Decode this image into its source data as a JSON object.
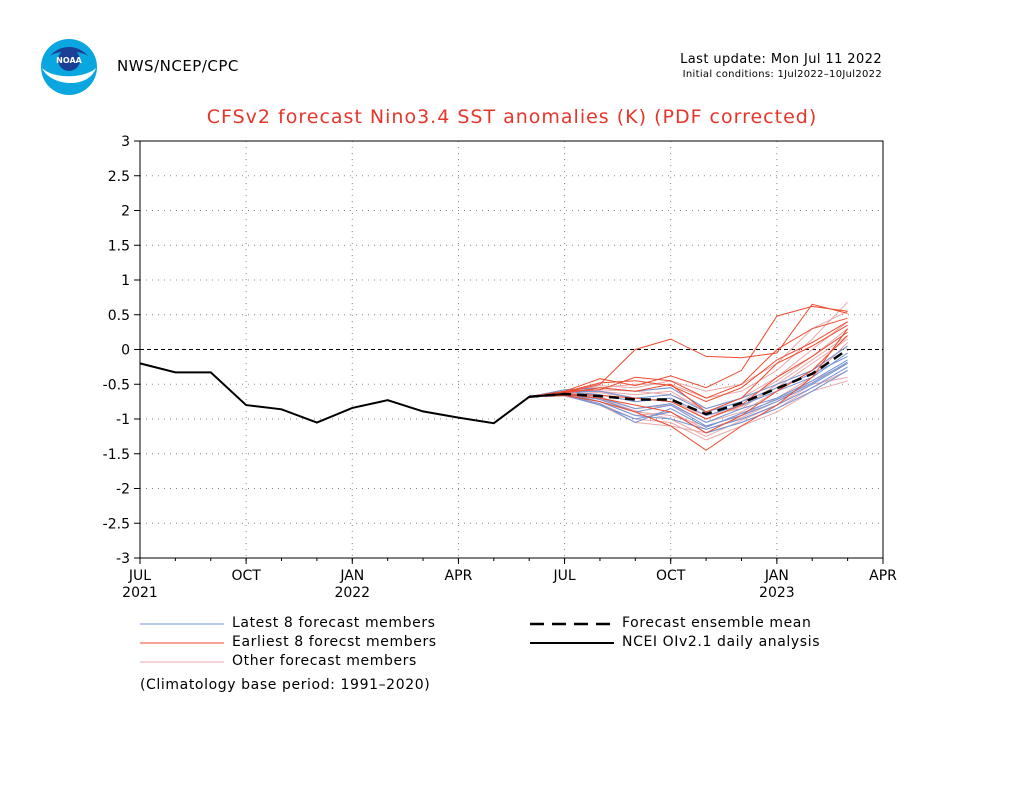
{
  "header": {
    "agency": "NWS/NCEP/CPC",
    "last_update": "Last update: Mon Jul 11 2022",
    "initial_conditions": "Initial conditions: 1Jul2022–10Jul2022"
  },
  "colors": {
    "latest": "#6f93d6",
    "earliest": "#ef4a2e",
    "other": "#e8a9a9",
    "mean": "#000000",
    "observed": "#000000",
    "title": "#e8352a"
  },
  "legend": {
    "latest": "Latest 8 forecast members",
    "earliest": "Earliest 8 forecst members",
    "other": "Other forecast members",
    "mean": "Forecast ensemble mean",
    "observed": "NCEI OIv2.1 daily analysis"
  },
  "note": "(Climatology base period: 1991–2020)",
  "chart_data": {
    "type": "line",
    "title": "CFSv2 forecast Nino3.4 SST anomalies (K) (PDF corrected)",
    "xlabel": "",
    "ylabel": "",
    "ylim": [
      -3,
      3
    ],
    "yticks": [
      3,
      2.5,
      2,
      1.5,
      1,
      0.5,
      0,
      -0.5,
      -1,
      -1.5,
      -2,
      -2.5,
      -3
    ],
    "x_range_months": [
      "2021-07",
      "2023-04"
    ],
    "x_ticks": [
      {
        "month": "2021-07",
        "label": "JUL",
        "year": "2021"
      },
      {
        "month": "2021-10",
        "label": "OCT",
        "year": ""
      },
      {
        "month": "2022-01",
        "label": "JAN",
        "year": "2022"
      },
      {
        "month": "2022-04",
        "label": "APR",
        "year": ""
      },
      {
        "month": "2022-07",
        "label": "JUL",
        "year": ""
      },
      {
        "month": "2022-10",
        "label": "OCT",
        "year": ""
      },
      {
        "month": "2023-01",
        "label": "JAN",
        "year": "2023"
      },
      {
        "month": "2023-04",
        "label": "APR",
        "year": ""
      }
    ],
    "grid": true,
    "observed": {
      "x": [
        "2021-07",
        "2021-08",
        "2021-09",
        "2021-10",
        "2021-11",
        "2021-12",
        "2022-01",
        "2022-02",
        "2022-03",
        "2022-04",
        "2022-05",
        "2022-06",
        "2022-07"
      ],
      "y": [
        -0.2,
        -0.33,
        -0.33,
        -0.8,
        -0.86,
        -1.05,
        -0.84,
        -0.73,
        -0.89,
        -0.98,
        -1.06,
        -0.68,
        -0.64
      ]
    },
    "forecast_months": [
      "2022-06",
      "2022-07",
      "2022-08",
      "2022-09",
      "2022-10",
      "2022-11",
      "2022-12",
      "2023-01",
      "2023-02",
      "2023-03"
    ],
    "ensemble_mean": [
      -0.68,
      -0.64,
      -0.67,
      -0.72,
      -0.72,
      -0.93,
      -0.77,
      -0.56,
      -0.35,
      0.0
    ],
    "latest_members": [
      [
        -0.68,
        -0.62,
        -0.72,
        -0.9,
        -0.8,
        -1.1,
        -0.95,
        -0.75,
        -0.5,
        -0.2
      ],
      [
        -0.68,
        -0.66,
        -0.8,
        -1.0,
        -0.9,
        -1.2,
        -1.05,
        -0.85,
        -0.6,
        -0.3
      ],
      [
        -0.68,
        -0.6,
        -0.65,
        -0.75,
        -0.7,
        -0.95,
        -0.8,
        -0.6,
        -0.4,
        -0.05
      ],
      [
        -0.68,
        -0.64,
        -0.7,
        -0.85,
        -0.78,
        -1.05,
        -0.85,
        -0.7,
        -0.45,
        -0.15
      ],
      [
        -0.68,
        -0.63,
        -0.75,
        -0.95,
        -1.0,
        -1.15,
        -1.0,
        -0.8,
        -0.55,
        -0.25
      ],
      [
        -0.68,
        -0.58,
        -0.55,
        -0.6,
        -0.55,
        -0.85,
        -0.7,
        -0.5,
        -0.3,
        0.05
      ],
      [
        -0.68,
        -0.65,
        -0.78,
        -1.05,
        -0.85,
        -1.12,
        -0.92,
        -0.72,
        -0.48,
        -0.18
      ],
      [
        -0.68,
        -0.61,
        -0.6,
        -0.7,
        -0.65,
        -0.9,
        -0.75,
        -0.55,
        -0.35,
        -0.1
      ]
    ],
    "earliest_members": [
      [
        -0.68,
        -0.62,
        -0.5,
        0.0,
        0.15,
        -0.1,
        -0.12,
        -0.05,
        0.65,
        0.52
      ],
      [
        -0.68,
        -0.6,
        -0.42,
        -0.52,
        -0.38,
        -0.55,
        -0.3,
        0.48,
        0.62,
        0.55
      ],
      [
        -0.68,
        -0.66,
        -0.75,
        -0.9,
        -1.1,
        -1.45,
        -1.1,
        -0.8,
        -0.4,
        0.3
      ],
      [
        -0.68,
        -0.63,
        -0.55,
        -0.6,
        -0.5,
        -0.9,
        -0.7,
        -0.2,
        0.05,
        0.35
      ],
      [
        -0.68,
        -0.65,
        -0.7,
        -0.8,
        -0.9,
        -1.2,
        -0.95,
        -0.6,
        -0.3,
        0.2
      ],
      [
        -0.68,
        -0.61,
        -0.48,
        -0.45,
        -0.52,
        -0.75,
        -0.55,
        -0.15,
        0.1,
        0.4
      ],
      [
        -0.68,
        -0.64,
        -0.66,
        -0.7,
        -0.75,
        -1.0,
        -0.8,
        -0.4,
        -0.1,
        0.25
      ],
      [
        -0.68,
        -0.6,
        -0.58,
        -0.4,
        -0.45,
        -0.7,
        -0.5,
        0.0,
        0.3,
        0.45
      ]
    ],
    "other_members": [
      [
        -0.68,
        -0.62,
        -0.7,
        -0.9,
        -0.95,
        -1.1,
        -0.95,
        -0.7,
        -0.4,
        0.1
      ],
      [
        -0.68,
        -0.6,
        -0.6,
        -0.65,
        -0.6,
        -0.9,
        -0.75,
        -0.45,
        -0.1,
        0.3
      ],
      [
        -0.68,
        -0.66,
        -0.8,
        -1.05,
        -1.1,
        -1.2,
        -1.05,
        -0.85,
        -0.55,
        -0.3
      ],
      [
        -0.68,
        -0.63,
        -0.65,
        -0.75,
        -0.7,
        -1.0,
        -0.82,
        -0.55,
        -0.2,
        0.15
      ],
      [
        -0.68,
        -0.61,
        -0.55,
        -0.5,
        -0.5,
        -0.7,
        -0.6,
        -0.3,
        0.15,
        0.68
      ],
      [
        -0.68,
        -0.65,
        -0.75,
        -0.95,
        -0.9,
        -1.15,
        -0.98,
        -0.75,
        -0.45,
        -0.2
      ],
      [
        -0.68,
        -0.62,
        -0.68,
        -0.85,
        -0.8,
        -1.05,
        -0.9,
        -0.6,
        -0.3,
        0.05
      ],
      [
        -0.68,
        -0.64,
        -0.72,
        -0.88,
        -1.0,
        -1.25,
        -1.02,
        -0.8,
        -0.5,
        -0.4
      ],
      [
        -0.68,
        -0.6,
        -0.58,
        -0.6,
        -0.65,
        -0.85,
        -0.7,
        -0.4,
        0.0,
        0.4
      ],
      [
        -0.68,
        -0.63,
        -0.62,
        -0.7,
        -0.75,
        -0.95,
        -0.85,
        -0.5,
        -0.15,
        0.2
      ],
      [
        -0.68,
        -0.67,
        -0.78,
        -1.0,
        -1.05,
        -1.3,
        -1.1,
        -0.9,
        -0.6,
        -0.45
      ],
      [
        -0.68,
        -0.61,
        -0.52,
        -0.55,
        -0.45,
        -0.6,
        -0.5,
        -0.2,
        0.3,
        0.55
      ]
    ]
  }
}
